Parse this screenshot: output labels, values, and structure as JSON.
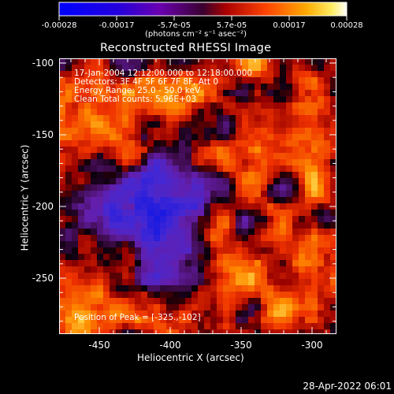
{
  "colorbar": {
    "ticks": [
      "-0.00028",
      "-0.00017",
      "-5.7e-05",
      "5.7e-05",
      "0.00017",
      "0.00028"
    ],
    "units": "(photons cm⁻² s⁻¹ asec⁻²)",
    "colors": [
      "#0000ff",
      "#4400cc",
      "#7700aa",
      "#cc2200",
      "#ff7700",
      "#ffdd44",
      "#ffffff"
    ]
  },
  "title": "Reconstructed RHESSI Image",
  "info": {
    "time": "17-Jan-2004 12:12:00.000 to 12:18:00.000",
    "detectors": "Detectors: 3F 4F 5F 6F 7F 8F, Att 0",
    "energy": "Energy Range: 25.0 - 50.0 keV",
    "method": "Clean     Total counts: 5.96E+03"
  },
  "peak_label": "Position of Peak = [-325.,-102]",
  "x_axis": {
    "label": "Heliocentric X (arcsec)",
    "ticks": [
      "-450",
      "-400",
      "-350",
      "-300"
    ],
    "range": [
      -480,
      -287
    ]
  },
  "y_axis": {
    "label": "Heliocentric Y (arcsec)",
    "ticks": [
      "-100",
      "-150",
      "-200",
      "-250"
    ],
    "range": [
      -292,
      -96
    ]
  },
  "footer_date": "28-Apr-2022 06:01"
}
